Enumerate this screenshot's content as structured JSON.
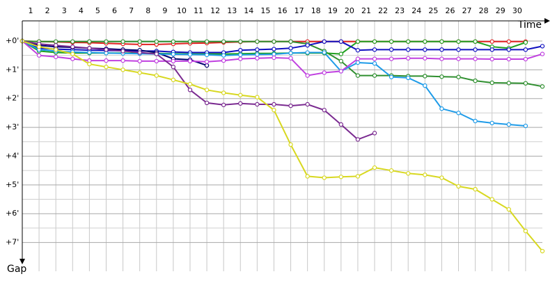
{
  "chart_data": {
    "type": "line",
    "x_label": "Time",
    "y_label": "Gap",
    "x": [
      0,
      1,
      2,
      3,
      4,
      5,
      6,
      7,
      8,
      9,
      10,
      11,
      12,
      13,
      14,
      15,
      16,
      17,
      18,
      19,
      20,
      21,
      22,
      23,
      24,
      25,
      26,
      27,
      28,
      29,
      30,
      31
    ],
    "xlim": [
      0,
      31
    ],
    "xticks": [
      1,
      2,
      3,
      4,
      5,
      6,
      7,
      8,
      9,
      10,
      11,
      12,
      13,
      14,
      15,
      16,
      17,
      18,
      19,
      20,
      21,
      22,
      23,
      24,
      25,
      26,
      27,
      28,
      29,
      30
    ],
    "ylim": [
      -0.7,
      8
    ],
    "y_direction": "down",
    "yticks": [
      {
        "value": 0,
        "label": "+0'"
      },
      {
        "value": 1,
        "label": "+1'"
      },
      {
        "value": 2,
        "label": "+2'"
      },
      {
        "value": 3,
        "label": "+3'"
      },
      {
        "value": 4,
        "label": "+4'"
      },
      {
        "value": 5,
        "label": "+5'"
      },
      {
        "value": 6,
        "label": "+6'"
      },
      {
        "value": 7,
        "label": "+7'"
      }
    ],
    "grid": true,
    "series": [
      {
        "color": "#e02020",
        "values": [
          0,
          0.02,
          0.03,
          0.05,
          0.06,
          0.08,
          0.1,
          0.12,
          0.12,
          0.1,
          0.08,
          0.07,
          0.05,
          0.03,
          0.02,
          0.02,
          0.02,
          0.02,
          0.02,
          0.02,
          0.02,
          0.02,
          0.02,
          0.02,
          0.02,
          0.02,
          0.02,
          0.02,
          0.02,
          0.02,
          0.02,
          null
        ]
      },
      {
        "color": "#2f8f2f",
        "values": [
          0,
          0.02,
          0.02,
          0.02,
          0.02,
          0.02,
          0.02,
          0.02,
          0.02,
          0.02,
          0.02,
          0.02,
          0.02,
          0.02,
          0.02,
          0.02,
          0.02,
          0.1,
          0.35,
          0.7,
          1.2,
          1.2,
          1.2,
          1.22,
          1.22,
          1.24,
          1.25,
          1.38,
          1.45,
          1.46,
          1.47,
          1.58
        ]
      },
      {
        "color": "#20a020",
        "values": [
          0,
          0.35,
          0.4,
          0.42,
          0.42,
          0.42,
          0.42,
          0.43,
          0.43,
          0.44,
          0.45,
          0.45,
          0.45,
          0.44,
          0.43,
          0.43,
          0.42,
          0.42,
          0.42,
          0.45,
          0.02,
          0.02,
          0.02,
          0.02,
          0.02,
          0.02,
          0.02,
          0.02,
          0.2,
          0.25,
          0.05,
          null
        ]
      },
      {
        "color": "#1010c0",
        "values": [
          0,
          0.25,
          0.28,
          0.3,
          0.32,
          0.33,
          0.34,
          0.35,
          0.35,
          0.38,
          0.4,
          0.4,
          0.4,
          0.32,
          0.3,
          0.28,
          0.25,
          0.15,
          0.02,
          0.02,
          0.32,
          0.3,
          0.3,
          0.3,
          0.3,
          0.3,
          0.3,
          0.3,
          0.3,
          0.3,
          0.3,
          0.18
        ]
      },
      {
        "color": "#000070",
        "values": [
          0,
          0.15,
          0.2,
          0.22,
          0.25,
          0.27,
          0.3,
          0.32,
          0.4,
          0.62,
          0.65,
          0.85,
          null,
          null,
          null,
          null,
          null,
          null,
          null,
          null,
          null,
          null,
          null,
          null,
          null,
          null,
          null,
          null,
          null,
          null,
          null,
          null
        ]
      },
      {
        "color": "#1e9be8",
        "values": [
          0,
          0.3,
          0.35,
          0.38,
          0.4,
          0.42,
          0.43,
          0.44,
          0.45,
          0.46,
          0.47,
          0.48,
          0.5,
          0.48,
          0.47,
          0.46,
          0.42,
          0.4,
          0.4,
          1.05,
          0.75,
          0.78,
          1.25,
          1.28,
          1.55,
          2.35,
          2.5,
          2.78,
          2.85,
          2.9,
          2.95,
          null
        ]
      },
      {
        "color": "#c040e0",
        "values": [
          0,
          0.5,
          0.55,
          0.62,
          0.68,
          0.68,
          0.68,
          0.7,
          0.7,
          0.7,
          0.7,
          0.72,
          0.68,
          0.62,
          0.6,
          0.58,
          0.6,
          1.2,
          1.1,
          1.05,
          0.62,
          0.62,
          0.62,
          0.6,
          0.6,
          0.62,
          0.62,
          0.62,
          0.63,
          0.63,
          0.63,
          0.45
        ]
      },
      {
        "color": "#7a2a90",
        "values": [
          0,
          0.1,
          0.15,
          0.2,
          0.25,
          0.3,
          0.35,
          0.4,
          0.45,
          0.9,
          1.7,
          2.15,
          2.22,
          2.17,
          2.2,
          2.2,
          2.25,
          2.2,
          2.4,
          2.9,
          3.42,
          3.2,
          null,
          null,
          null,
          null,
          null,
          null,
          null,
          null,
          null,
          null
        ]
      },
      {
        "color": "#d8d820",
        "values": [
          0,
          0.2,
          0.3,
          0.45,
          0.8,
          0.9,
          1.0,
          1.1,
          1.2,
          1.35,
          1.5,
          1.7,
          1.8,
          1.88,
          1.95,
          2.4,
          3.6,
          4.7,
          4.75,
          4.72,
          4.7,
          4.4,
          4.5,
          4.6,
          4.65,
          4.75,
          5.05,
          5.15,
          5.5,
          5.85,
          6.6,
          7.3
        ]
      }
    ]
  }
}
